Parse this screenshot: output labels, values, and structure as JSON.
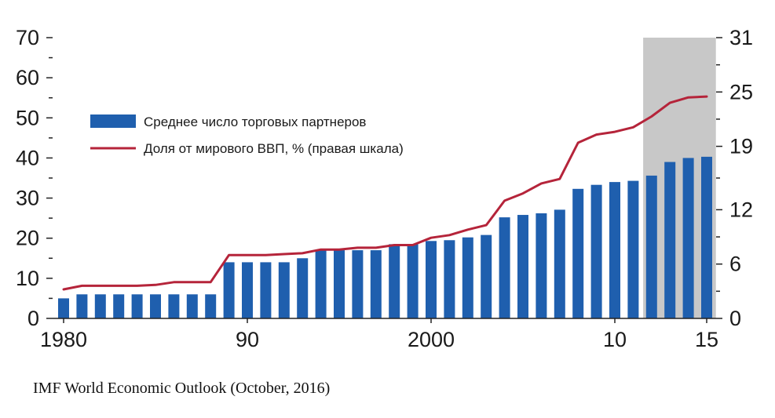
{
  "chart_data": {
    "type": "bar",
    "x": [
      1980,
      1981,
      1982,
      1983,
      1984,
      1985,
      1986,
      1987,
      1988,
      1989,
      1990,
      1991,
      1992,
      1993,
      1994,
      1995,
      1996,
      1997,
      1998,
      1999,
      2000,
      2001,
      2002,
      2003,
      2004,
      2005,
      2006,
      2007,
      2008,
      2009,
      2010,
      2011,
      2012,
      2013,
      2014,
      2015
    ],
    "xtick_values": [
      1980,
      1990,
      2000,
      2010,
      2015
    ],
    "xtick_labels": [
      "1980",
      "90",
      "2000",
      "10",
      "15"
    ],
    "series": [
      {
        "name": "Среднее число торговых партнеров",
        "type": "bar",
        "axis": "left",
        "color": "#1f5fae",
        "values": [
          5,
          6,
          6,
          6,
          6,
          6,
          6,
          6,
          6,
          14,
          14,
          14,
          14,
          15,
          17,
          17,
          17,
          17,
          18.5,
          18.5,
          19.3,
          19.5,
          20.2,
          20.8,
          25.2,
          25.8,
          26.2,
          27.1,
          32.3,
          33.3,
          34,
          34.3,
          35.6,
          39,
          40,
          40.3
        ]
      },
      {
        "name": "Доля от мирового ВВП, % (правая шкала)",
        "type": "line",
        "axis": "right",
        "color": "#b5243a",
        "values": [
          3.2,
          3.6,
          3.6,
          3.6,
          3.6,
          3.7,
          4,
          4,
          4,
          7,
          7,
          7,
          7.1,
          7.2,
          7.6,
          7.6,
          7.8,
          7.8,
          8.1,
          8.1,
          8.9,
          9.2,
          9.8,
          10.3,
          13,
          13.8,
          14.9,
          15.4,
          19.4,
          20.3,
          20.6,
          21.1,
          22.3,
          23.8,
          24.4,
          24.5
        ]
      }
    ],
    "y_left": {
      "min": 0,
      "max": 70,
      "ticks": [
        0,
        10,
        20,
        30,
        40,
        50,
        60,
        70
      ]
    },
    "y_right": {
      "min": 0,
      "max": 31,
      "ticks": [
        0,
        6,
        12,
        19,
        25,
        31
      ]
    },
    "shaded_region": {
      "from": 2012,
      "to": 2015,
      "color": "#c8c8c8"
    },
    "legend_position": "top-left",
    "grid": false,
    "title": "",
    "xlabel": "",
    "ylabel": ""
  },
  "source_note": "IMF World Economic Outlook (October, 2016)"
}
